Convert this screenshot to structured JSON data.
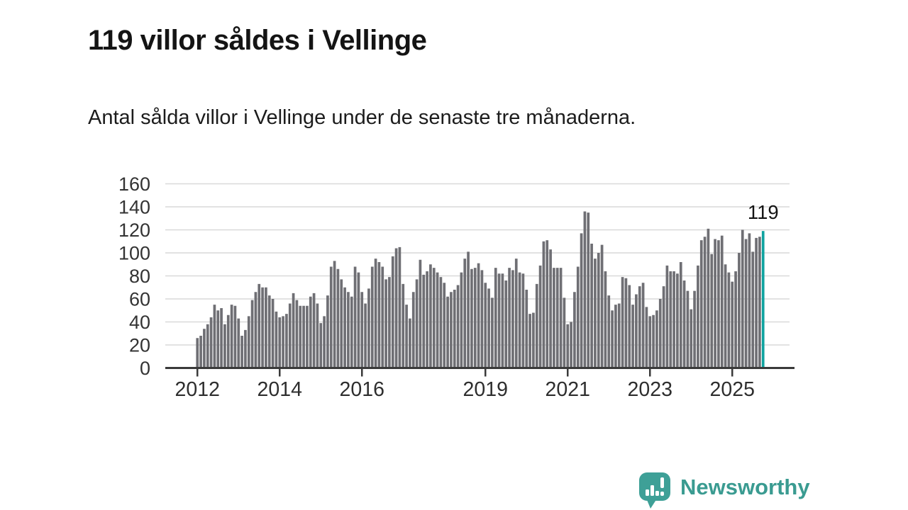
{
  "page": {
    "title": "119 villor såldes i Vellinge",
    "subtitle": "Antal sålda villor i Vellinge under de senaste tre månaderna."
  },
  "chart_data": {
    "type": "bar",
    "title": "119 villor såldes i Vellinge",
    "subtitle": "Antal sålda villor i Vellinge under de senaste tre månaderna.",
    "xlabel": "",
    "ylabel": "",
    "ylim": [
      0,
      160
    ],
    "grid": true,
    "y_ticks": [
      0,
      20,
      40,
      60,
      80,
      100,
      120,
      140,
      160
    ],
    "x_tick_labels": [
      "2012",
      "2014",
      "2016",
      "2019",
      "2021",
      "2023",
      "2025"
    ],
    "x_tick_month_index": [
      0,
      24,
      48,
      84,
      108,
      132,
      156
    ],
    "start_month": "2012-01",
    "end_month": "2025-10",
    "unit": "antal sålda villor (rullande tre månader)",
    "values": [
      26,
      28,
      34,
      38,
      44,
      55,
      50,
      52,
      38,
      46,
      55,
      54,
      43,
      28,
      33,
      45,
      59,
      66,
      73,
      70,
      70,
      63,
      60,
      49,
      44,
      45,
      47,
      56,
      65,
      59,
      54,
      54,
      54,
      62,
      65,
      56,
      39,
      45,
      63,
      88,
      93,
      86,
      77,
      70,
      66,
      62,
      88,
      83,
      66,
      56,
      69,
      88,
      95,
      92,
      88,
      77,
      79,
      97,
      104,
      105,
      73,
      55,
      43,
      66,
      77,
      94,
      81,
      84,
      90,
      87,
      83,
      79,
      74,
      62,
      66,
      68,
      72,
      83,
      95,
      101,
      86,
      87,
      91,
      85,
      74,
      69,
      61,
      87,
      82,
      82,
      76,
      87,
      85,
      95,
      83,
      82,
      68,
      47,
      48,
      73,
      89,
      110,
      111,
      103,
      87,
      87,
      87,
      61,
      38,
      40,
      66,
      88,
      117,
      136,
      135,
      108,
      95,
      100,
      107,
      84,
      63,
      50,
      55,
      56,
      79,
      78,
      72,
      55,
      64,
      71,
      74,
      53,
      45,
      46,
      50,
      60,
      71,
      89,
      84,
      84,
      82,
      92,
      76,
      67,
      51,
      67,
      89,
      111,
      114,
      121,
      99,
      112,
      111,
      115,
      90,
      83,
      75,
      84,
      100,
      120,
      112,
      117,
      101,
      113,
      114,
      119
    ],
    "highlight": {
      "index": 165,
      "value": 119,
      "label": "119",
      "color": "#0FA3A0"
    },
    "colors": {
      "bar": "#6F6F74",
      "highlight": "#0FA3A0",
      "grid": "#D9D9D9",
      "axis": "#3A3A3A",
      "y_tick_label": "#333333",
      "x_tick_label": "#2E2E2E",
      "annotation": "#141414"
    }
  },
  "logo": {
    "name": "Newsworthy",
    "text_color": "#3A9B91",
    "icon": "newsworthy-speech-bubble-chart-icon",
    "icon_color": "#3EA097"
  }
}
